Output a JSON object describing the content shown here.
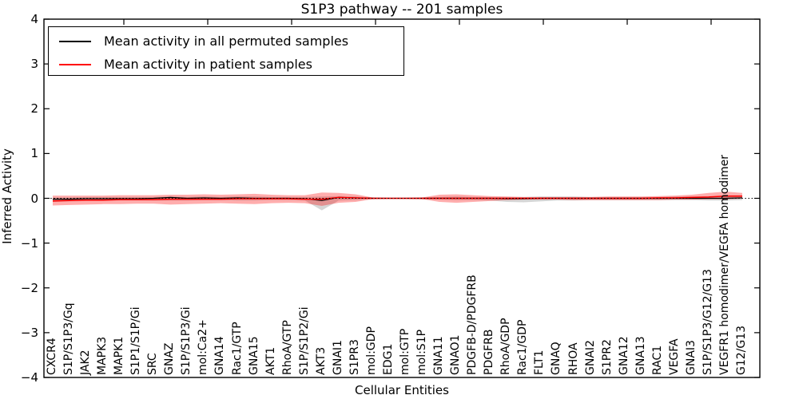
{
  "figure": {
    "legend": [
      {
        "label": "Mean activity in all permuted samples",
        "color": "#000000"
      },
      {
        "label": "Mean activity in patient samples",
        "color": "#ff0000"
      }
    ]
  },
  "chart_data": {
    "type": "line",
    "title": "S1P3 pathway -- 201 samples",
    "xlabel": "Cellular Entities",
    "ylabel": "Inferred Activity",
    "ylim": [
      -4,
      4
    ],
    "yticks": [
      4,
      3,
      2,
      1,
      0,
      -1,
      -2,
      -3,
      -4
    ],
    "ytick_labels": [
      "4",
      "3",
      "2",
      "1",
      "0",
      "−1",
      "−2",
      "−3",
      "−4"
    ],
    "grid": false,
    "legend_position": "upper left",
    "zero_line_style": "dotted",
    "categories": [
      "CXCR4",
      "S1P/S1P3/Gq",
      "JAK2",
      "MAPK3",
      "MAPK1",
      "S1P1/S1P/Gi",
      "SRC",
      "GNAZ",
      "S1P/S1P3/Gi",
      "mol:Ca2+",
      "GNA14",
      "Rac1/GTP",
      "GNA15",
      "AKT1",
      "RhoA/GTP",
      "S1P/S1P2/Gi",
      "AKT3",
      "GNAI1",
      "S1PR3",
      "mol:GDP",
      "EDG1",
      "mol:GTP",
      "mol:S1P",
      "GNA11",
      "GNAO1",
      "PDGFB-D/PDGFRB",
      "PDGFRB",
      "RhoA/GDP",
      "Rac1/GDP",
      "FLT1",
      "GNAQ",
      "RHOA",
      "GNAI2",
      "S1PR2",
      "GNA12",
      "GNA13",
      "RAC1",
      "VEGFA",
      "GNAI3",
      "S1P/S1P3/G12/G13",
      "VEGFR1 homodimer/VEGFA homodimer",
      "G12/G13"
    ],
    "series": [
      {
        "name": "Mean activity in all permuted samples",
        "color": "#000000",
        "width": 1.2,
        "values": [
          -0.02,
          -0.02,
          -0.01,
          -0.01,
          -0.01,
          -0.01,
          0,
          0.02,
          0,
          0.01,
          0,
          0.01,
          0,
          0,
          0,
          -0.01,
          -0.05,
          0.02,
          0.01,
          0,
          0,
          0,
          0,
          0,
          0,
          0,
          0,
          -0.01,
          -0.01,
          0,
          0,
          0,
          0,
          0,
          0,
          0,
          0,
          0,
          0,
          0,
          0,
          0.01
        ]
      },
      {
        "name": "Mean activity in patient samples",
        "color": "#ff0000",
        "width": 1.5,
        "values": [
          -0.06,
          -0.05,
          -0.04,
          -0.04,
          -0.03,
          -0.03,
          -0.03,
          -0.02,
          -0.02,
          -0.02,
          -0.02,
          -0.01,
          -0.01,
          -0.01,
          -0.01,
          -0.02,
          -0.02,
          0.02,
          0.01,
          0,
          0,
          0,
          0,
          0,
          0,
          0,
          0,
          0,
          0,
          0,
          0,
          0,
          0,
          0,
          0,
          0,
          0.01,
          0.01,
          0.02,
          0.03,
          0.05,
          0.05
        ]
      }
    ],
    "bands": [
      {
        "name": "permuted-samples-range",
        "color": "rgba(150,150,150,0.40)",
        "lower": [
          -0.08,
          -0.07,
          -0.06,
          -0.06,
          -0.05,
          -0.05,
          -0.05,
          -0.05,
          -0.05,
          -0.04,
          -0.04,
          -0.05,
          -0.05,
          -0.04,
          -0.04,
          -0.05,
          -0.27,
          -0.05,
          -0.04,
          -0.02,
          -0.01,
          -0.01,
          -0.02,
          -0.03,
          -0.04,
          -0.04,
          -0.05,
          -0.08,
          -0.09,
          -0.07,
          -0.05,
          -0.05,
          -0.04,
          -0.04,
          -0.04,
          -0.04,
          -0.04,
          -0.04,
          -0.04,
          -0.05,
          -0.05,
          -0.04
        ],
        "upper": [
          0.02,
          0.02,
          0.03,
          0.03,
          0.03,
          0.03,
          0.03,
          0.04,
          0.03,
          0.04,
          0.03,
          0.04,
          0.04,
          0.03,
          0.03,
          0.03,
          0.04,
          0.05,
          0.04,
          0.02,
          0.01,
          0.01,
          0.02,
          0.03,
          0.04,
          0.03,
          0.03,
          0.03,
          0.03,
          0.04,
          0.04,
          0.04,
          0.03,
          0.03,
          0.03,
          0.03,
          0.03,
          0.04,
          0.04,
          0.04,
          0.05,
          0.04
        ]
      },
      {
        "name": "patient-samples-range",
        "color": "rgba(255,0,0,0.32)",
        "lower": [
          -0.16,
          -0.15,
          -0.14,
          -0.13,
          -0.13,
          -0.12,
          -0.12,
          -0.14,
          -0.13,
          -0.12,
          -0.11,
          -0.12,
          -0.13,
          -0.11,
          -0.1,
          -0.11,
          -0.17,
          -0.1,
          -0.08,
          -0.02,
          -0.01,
          -0.01,
          -0.02,
          -0.08,
          -0.1,
          -0.08,
          -0.06,
          -0.04,
          -0.03,
          -0.03,
          -0.03,
          -0.04,
          -0.04,
          -0.04,
          -0.04,
          -0.04,
          -0.04,
          -0.03,
          -0.03,
          -0.02,
          -0.02,
          -0.01
        ],
        "upper": [
          0.06,
          0.06,
          0.06,
          0.06,
          0.07,
          0.07,
          0.07,
          0.08,
          0.08,
          0.09,
          0.08,
          0.09,
          0.1,
          0.08,
          0.07,
          0.07,
          0.13,
          0.12,
          0.09,
          0.02,
          0.01,
          0.01,
          0.02,
          0.08,
          0.09,
          0.07,
          0.05,
          0.04,
          0.03,
          0.03,
          0.03,
          0.03,
          0.03,
          0.04,
          0.04,
          0.04,
          0.05,
          0.06,
          0.08,
          0.12,
          0.15,
          0.12
        ]
      }
    ]
  }
}
